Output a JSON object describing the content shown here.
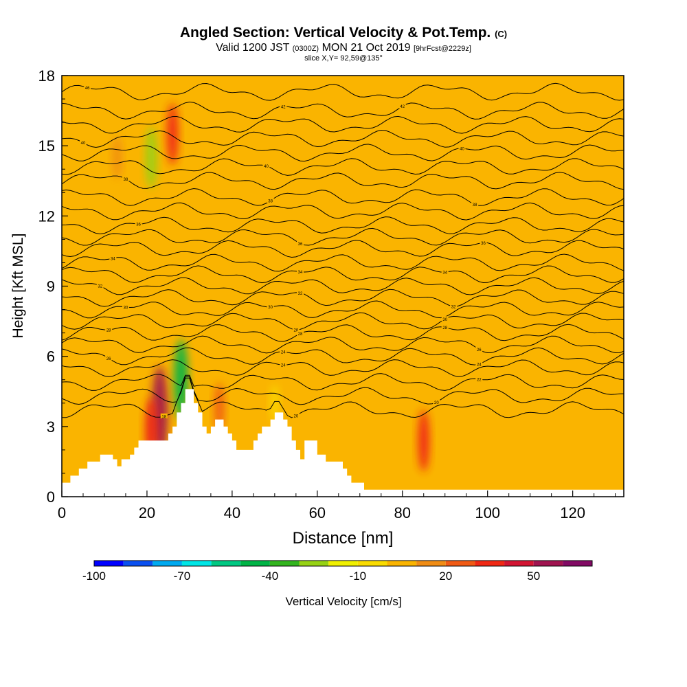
{
  "header": {
    "title": "Angled Section: Vertical Velocity & Pot.Temp.",
    "title_suffix": "(C)",
    "valid_pre": "Valid 1200 JST",
    "valid_utc": "(0300Z)",
    "valid_date": "MON 21 Oct 2019",
    "forecast": "[9hrFcst@2229z]",
    "slice": "slice X,Y= 92,59@135°"
  },
  "chart_data": {
    "type": "heatmap",
    "xlabel": "Distance [nm]",
    "ylabel": "Height [Kft MSL]",
    "xlim": [
      0,
      132
    ],
    "ylim": [
      0,
      18
    ],
    "x_ticks": [
      0,
      20,
      40,
      60,
      80,
      100,
      120
    ],
    "y_ticks": [
      0,
      3,
      6,
      9,
      12,
      15,
      18
    ],
    "grid": false,
    "colorbar": {
      "label": "Vertical Velocity [cm/s]",
      "min": -100,
      "max": 70,
      "step": 10,
      "tick_labels": [
        -100,
        -70,
        -40,
        -10,
        20,
        50
      ],
      "colors": [
        "#0000ff",
        "#0a50f0",
        "#00aaf0",
        "#00e6e6",
        "#00c882",
        "#00b446",
        "#32b41e",
        "#96d214",
        "#f0f000",
        "#fadc00",
        "#fab400",
        "#f08c14",
        "#f05a14",
        "#f02814",
        "#d21432",
        "#a01450",
        "#820a64"
      ]
    },
    "background_value_cm_s": 5,
    "features": [
      {
        "x": 23,
        "y": 3.6,
        "value": 55
      },
      {
        "x": 26,
        "y": 15.5,
        "value": 30
      },
      {
        "x": 21,
        "y": 2.8,
        "value": 35
      },
      {
        "x": 21,
        "y": 14.5,
        "value": -30
      },
      {
        "x": 28,
        "y": 5,
        "value": -45
      },
      {
        "x": 85,
        "y": 2.4,
        "value": 30
      },
      {
        "x": 50,
        "y": 4,
        "value": -10
      },
      {
        "x": 37,
        "y": 3.8,
        "value": 20
      },
      {
        "x": 13,
        "y": 14.5,
        "value": 15
      }
    ],
    "terrain": [
      [
        0,
        0.6
      ],
      [
        2,
        0.6
      ],
      [
        2,
        0.9
      ],
      [
        4,
        0.9
      ],
      [
        4,
        1.2
      ],
      [
        6,
        1.2
      ],
      [
        6,
        1.5
      ],
      [
        9,
        1.5
      ],
      [
        9,
        1.8
      ],
      [
        12,
        1.8
      ],
      [
        12,
        1.6
      ],
      [
        13,
        1.6
      ],
      [
        13,
        1.3
      ],
      [
        14,
        1.3
      ],
      [
        14,
        1.6
      ],
      [
        16,
        1.6
      ],
      [
        16,
        1.8
      ],
      [
        17,
        1.8
      ],
      [
        17,
        2.1
      ],
      [
        18,
        2.1
      ],
      [
        18,
        2.4
      ],
      [
        25,
        2.4
      ],
      [
        25,
        2.7
      ],
      [
        26,
        2.7
      ],
      [
        26,
        3.0
      ],
      [
        27,
        3.0
      ],
      [
        27,
        3.6
      ],
      [
        28,
        3.6
      ],
      [
        28,
        4.0
      ],
      [
        29,
        4.0
      ],
      [
        29,
        4.6
      ],
      [
        31,
        4.6
      ],
      [
        31,
        4.0
      ],
      [
        32,
        4.0
      ],
      [
        32,
        3.6
      ],
      [
        33,
        3.6
      ],
      [
        33,
        3.0
      ],
      [
        34,
        3.0
      ],
      [
        34,
        2.7
      ],
      [
        35,
        2.7
      ],
      [
        35,
        3.0
      ],
      [
        36,
        3.0
      ],
      [
        36,
        3.3
      ],
      [
        38,
        3.3
      ],
      [
        38,
        3.0
      ],
      [
        39,
        3.0
      ],
      [
        39,
        2.7
      ],
      [
        40,
        2.7
      ],
      [
        40,
        2.4
      ],
      [
        41,
        2.4
      ],
      [
        41,
        2.0
      ],
      [
        45,
        2.0
      ],
      [
        45,
        2.4
      ],
      [
        46,
        2.4
      ],
      [
        46,
        2.7
      ],
      [
        47,
        2.7
      ],
      [
        47,
        3.0
      ],
      [
        49,
        3.0
      ],
      [
        49,
        3.3
      ],
      [
        50,
        3.3
      ],
      [
        50,
        3.6
      ],
      [
        52,
        3.6
      ],
      [
        52,
        3.3
      ],
      [
        53,
        3.3
      ],
      [
        53,
        3.0
      ],
      [
        54,
        3.0
      ],
      [
        54,
        2.4
      ],
      [
        55,
        2.4
      ],
      [
        55,
        2.0
      ],
      [
        56,
        2.0
      ],
      [
        56,
        1.6
      ],
      [
        57,
        1.6
      ],
      [
        57,
        2.4
      ],
      [
        60,
        2.4
      ],
      [
        60,
        1.8
      ],
      [
        62,
        1.8
      ],
      [
        62,
        1.5
      ],
      [
        66,
        1.5
      ],
      [
        66,
        1.2
      ],
      [
        67,
        1.2
      ],
      [
        67,
        0.9
      ],
      [
        68,
        0.9
      ],
      [
        68,
        0.6
      ],
      [
        71,
        0.6
      ],
      [
        71,
        0.3
      ],
      [
        132,
        0.3
      ]
    ],
    "theta_contours": [
      {
        "base": 17.3,
        "labels": [
          {
            "x": 6,
            "text": "46"
          }
        ]
      },
      {
        "base": 16.5,
        "labels": [
          {
            "x": 52,
            "text": "42"
          },
          {
            "x": 80,
            "text": "42"
          }
        ]
      },
      {
        "base": 15.9,
        "labels": []
      },
      {
        "base": 15.3,
        "labels": [
          {
            "x": 5,
            "text": "40"
          }
        ]
      },
      {
        "base": 14.7,
        "labels": [
          {
            "x": 94,
            "text": "40"
          }
        ]
      },
      {
        "base": 14.1,
        "labels": [
          {
            "x": 48,
            "text": "40"
          }
        ]
      },
      {
        "base": 13.5,
        "labels": [
          {
            "x": 15,
            "text": "38"
          }
        ]
      },
      {
        "base": 12.8,
        "labels": [
          {
            "x": 49,
            "text": "38"
          },
          {
            "x": 97,
            "text": "38"
          }
        ]
      },
      {
        "base": 12.2,
        "labels": []
      },
      {
        "base": 11.6,
        "labels": [
          {
            "x": 18,
            "text": "36"
          }
        ]
      },
      {
        "base": 11.1,
        "labels": [
          {
            "x": 56,
            "text": "36"
          }
        ]
      },
      {
        "base": 10.6,
        "labels": [
          {
            "x": 99,
            "text": "36"
          }
        ]
      },
      {
        "base": 10.0,
        "labels": [
          {
            "x": 12,
            "text": "34"
          }
        ]
      },
      {
        "base": 9.5,
        "labels": [
          {
            "x": 56,
            "text": "34"
          },
          {
            "x": 90,
            "text": "34"
          }
        ]
      },
      {
        "base": 9.0,
        "labels": [
          {
            "x": 9,
            "text": "32"
          }
        ]
      },
      {
        "base": 8.5,
        "labels": [
          {
            "x": 56,
            "text": "32"
          },
          {
            "x": 92,
            "text": "32"
          }
        ]
      },
      {
        "base": 8.0,
        "labels": [
          {
            "x": 15,
            "text": "30"
          },
          {
            "x": 49,
            "text": "30"
          }
        ]
      },
      {
        "base": 7.5,
        "labels": [
          {
            "x": 55,
            "text": "28"
          },
          {
            "x": 90,
            "text": "30"
          }
        ]
      },
      {
        "base": 7.0,
        "labels": [
          {
            "x": 11,
            "text": "28"
          },
          {
            "x": 56,
            "text": "28"
          },
          {
            "x": 90,
            "text": "28"
          }
        ]
      },
      {
        "base": 6.5,
        "labels": [
          {
            "x": 98,
            "text": "26"
          }
        ]
      },
      {
        "base": 6.0,
        "labels": [
          {
            "x": 11,
            "text": "26"
          },
          {
            "x": 52,
            "text": "24"
          },
          {
            "x": 98,
            "text": "24"
          }
        ]
      },
      {
        "base": 5.5,
        "labels": [
          {
            "x": 52,
            "text": "24"
          }
        ]
      },
      {
        "base": 4.9,
        "labels": [
          {
            "x": 98,
            "text": "22"
          }
        ]
      },
      {
        "base": 4.3,
        "labels": [
          {
            "x": 88,
            "text": "20"
          }
        ]
      },
      {
        "base": 3.7,
        "labels": [
          {
            "x": 55,
            "text": "20"
          },
          {
            "x": 24,
            "text": "18"
          }
        ]
      }
    ]
  }
}
